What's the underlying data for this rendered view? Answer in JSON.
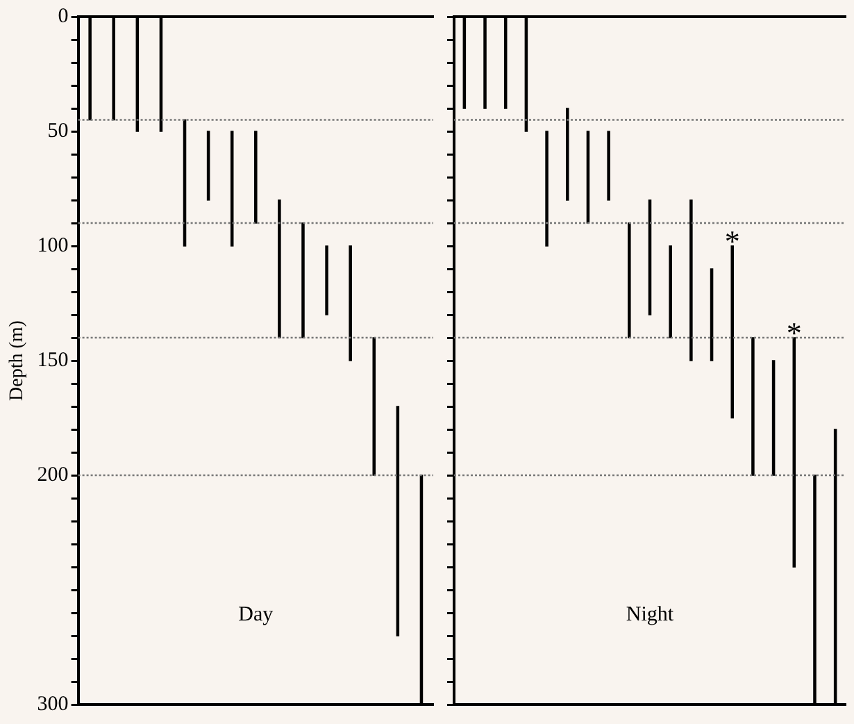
{
  "chart_data": [
    {
      "type": "bar",
      "title": "Day",
      "ylabel": "Depth (m)",
      "color": "#000000",
      "tick_labels": "y",
      "categories": [
        null,
        null,
        null,
        null,
        null,
        null,
        null,
        null,
        null,
        null,
        null,
        null,
        null,
        null,
        null
      ],
      "base": [
        0,
        0,
        0,
        0,
        45,
        50,
        50,
        50,
        80,
        90,
        100,
        100,
        140,
        170,
        200
      ],
      "values": [
        45,
        45,
        50,
        50,
        55,
        30,
        50,
        40,
        60,
        50,
        30,
        50,
        60,
        100,
        100
      ],
      "ylim": [
        300,
        0
      ],
      "yticks": [
        0,
        {
          "value": 10,
          "label": null
        },
        {
          "value": 20,
          "label": null
        },
        {
          "value": 30,
          "label": null
        },
        {
          "value": 40,
          "label": null
        },
        50,
        {
          "value": 60,
          "label": null
        },
        {
          "value": 70,
          "label": null
        },
        {
          "value": 80,
          "label": null
        },
        {
          "value": 90,
          "label": null
        },
        100,
        {
          "value": 110,
          "label": null
        },
        {
          "value": 120,
          "label": null
        },
        {
          "value": 130,
          "label": null
        },
        {
          "value": 140,
          "label": null
        },
        150,
        {
          "value": 160,
          "label": null
        },
        {
          "value": 170,
          "label": null
        },
        {
          "value": 180,
          "label": null
        },
        {
          "value": 190,
          "label": null
        },
        200,
        {
          "value": 210,
          "label": null
        },
        {
          "value": 220,
          "label": null
        },
        {
          "value": 230,
          "label": null
        },
        {
          "value": 240,
          "label": null
        },
        {
          "value": 250,
          "label": null
        },
        {
          "value": 260,
          "label": null
        },
        {
          "value": 270,
          "label": null
        },
        {
          "value": 280,
          "label": null
        },
        {
          "value": 290,
          "label": null
        },
        300
      ],
      "ref_lines": [
        {
          "axis": "y",
          "value": 45,
          "line_style": "dotted",
          "color": "#777777"
        },
        {
          "axis": "y",
          "value": 90,
          "line_style": "dotted",
          "color": "#777777"
        },
        {
          "axis": "y",
          "value": 140,
          "line_style": "dotted",
          "color": "#777777"
        },
        {
          "axis": "y",
          "value": 200,
          "line_style": "dotted",
          "color": "#777777"
        }
      ]
    },
    {
      "type": "bar",
      "title": "Night",
      "color": "#000000",
      "tick_labels": false,
      "categories": [
        null,
        null,
        null,
        null,
        null,
        null,
        null,
        null,
        null,
        null,
        null,
        null,
        null,
        null,
        null,
        null,
        null,
        null,
        null
      ],
      "base": [
        0,
        0,
        0,
        0,
        50,
        40,
        50,
        50,
        90,
        80,
        100,
        80,
        110,
        100,
        140,
        150,
        140,
        200,
        180
      ],
      "values": [
        40,
        40,
        40,
        50,
        50,
        40,
        40,
        30,
        50,
        50,
        40,
        70,
        40,
        75,
        60,
        50,
        100,
        100,
        120
      ],
      "value_labels": [
        null,
        null,
        null,
        null,
        null,
        null,
        null,
        null,
        null,
        null,
        null,
        null,
        null,
        "*",
        null,
        null,
        "*",
        null,
        null
      ],
      "ylim": [
        300,
        0
      ],
      "yticks": [
        0,
        {
          "value": 10,
          "label": null
        },
        {
          "value": 20,
          "label": null
        },
        {
          "value": 30,
          "label": null
        },
        {
          "value": 40,
          "label": null
        },
        50,
        {
          "value": 60,
          "label": null
        },
        {
          "value": 70,
          "label": null
        },
        {
          "value": 80,
          "label": null
        },
        {
          "value": 90,
          "label": null
        },
        100,
        {
          "value": 110,
          "label": null
        },
        {
          "value": 120,
          "label": null
        },
        {
          "value": 130,
          "label": null
        },
        {
          "value": 140,
          "label": null
        },
        150,
        {
          "value": 160,
          "label": null
        },
        {
          "value": 170,
          "label": null
        },
        {
          "value": 180,
          "label": null
        },
        {
          "value": 190,
          "label": null
        },
        200,
        {
          "value": 210,
          "label": null
        },
        {
          "value": 220,
          "label": null
        },
        {
          "value": 230,
          "label": null
        },
        {
          "value": 240,
          "label": null
        },
        {
          "value": 250,
          "label": null
        },
        {
          "value": 260,
          "label": null
        },
        {
          "value": 270,
          "label": null
        },
        {
          "value": 280,
          "label": null
        },
        {
          "value": 290,
          "label": null
        },
        300
      ],
      "ref_lines": [
        {
          "axis": "y",
          "value": 45,
          "line_style": "dotted",
          "color": "#777777"
        },
        {
          "axis": "y",
          "value": 90,
          "line_style": "dotted",
          "color": "#777777"
        },
        {
          "axis": "y",
          "value": 140,
          "line_style": "dotted",
          "color": "#777777"
        },
        {
          "axis": "y",
          "value": 200,
          "line_style": "dotted",
          "color": "#777777"
        }
      ]
    }
  ]
}
